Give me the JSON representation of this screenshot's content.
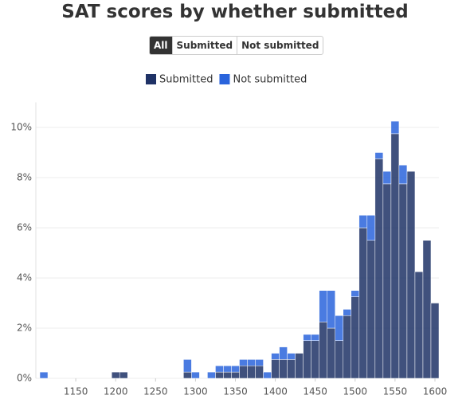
{
  "filter_buttons": [
    "All",
    "Submitted",
    "Not submitted"
  ],
  "chart_data": {
    "type": "histogram",
    "title": "SAT scores by whether submitted",
    "stacked": true,
    "grid": true,
    "bins": [
      1105,
      1115,
      1125,
      1135,
      1145,
      1155,
      1165,
      1175,
      1185,
      1195,
      1205,
      1215,
      1225,
      1235,
      1245,
      1255,
      1265,
      1275,
      1285,
      1295,
      1305,
      1315,
      1325,
      1335,
      1345,
      1355,
      1365,
      1375,
      1385,
      1395,
      1405,
      1415,
      1425,
      1435,
      1445,
      1455,
      1465,
      1475,
      1485,
      1495,
      1505,
      1515,
      1525,
      1535,
      1545,
      1555,
      1565,
      1575,
      1585,
      1595,
      1605
    ],
    "series": [
      {
        "name": "Submitted",
        "color": "#1f3266",
        "values": [
          0,
          0,
          0,
          0,
          0,
          0,
          0,
          0,
          0,
          0.25,
          0.25,
          0,
          0,
          0,
          0,
          0,
          0,
          0,
          0.25,
          0,
          0,
          0,
          0.25,
          0.25,
          0.25,
          0.5,
          0.5,
          0.5,
          0,
          0.75,
          0.75,
          0.75,
          1.0,
          1.5,
          1.5,
          2.25,
          2.0,
          1.5,
          2.5,
          3.25,
          6.0,
          5.5,
          8.75,
          7.75,
          9.75,
          7.75,
          8.25,
          4.25,
          5.5,
          3.0
        ]
      },
      {
        "name": "Not submitted",
        "color": "#2a64dc",
        "values": [
          0.25,
          0,
          0,
          0,
          0,
          0,
          0,
          0,
          0,
          0,
          0,
          0,
          0,
          0,
          0,
          0,
          0,
          0,
          0.5,
          0.25,
          0,
          0.25,
          0.25,
          0.25,
          0.25,
          0.25,
          0.25,
          0.25,
          0.25,
          0.25,
          0.5,
          0.25,
          0,
          0.25,
          0.25,
          1.25,
          1.5,
          1.0,
          0.25,
          0.25,
          0.5,
          1.0,
          0.25,
          0.5,
          0.5,
          0.75,
          0,
          0,
          0,
          0
        ]
      }
    ],
    "xlim": [
      1100,
      1605
    ],
    "xticks": [
      1150,
      1200,
      1250,
      1300,
      1350,
      1400,
      1450,
      1500,
      1550,
      1600
    ],
    "ylim": [
      0,
      11
    ],
    "yticks": [
      {
        "value": 0,
        "label": "0%"
      },
      {
        "value": 2,
        "label": "2%"
      },
      {
        "value": 4,
        "label": "4%"
      },
      {
        "value": 6,
        "label": "6%"
      },
      {
        "value": 8,
        "label": "8%"
      },
      {
        "value": 10,
        "label": "10%"
      }
    ]
  }
}
